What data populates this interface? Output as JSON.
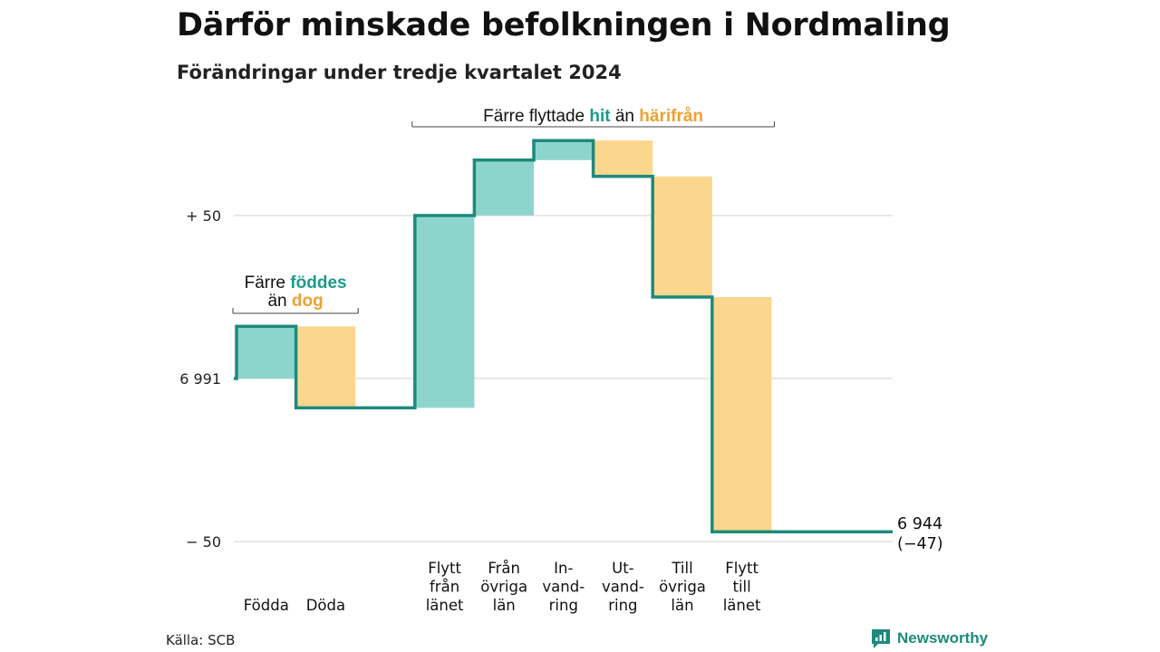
{
  "header": {
    "title": "Därför minskade befolkningen i Nordmaling",
    "subtitle": "Förändringar under tredje kvartalet 2024"
  },
  "colors": {
    "increase_fill": "#8dd5cc",
    "decrease_fill": "#fbd68d",
    "line": "#1d8a7c",
    "highlight_teal": "#1d9a8a",
    "highlight_orange": "#f0a030",
    "grid": "#e0e0e0",
    "logo": "#1d8a7c"
  },
  "chart_data": {
    "type": "waterfall",
    "start_value": 6991,
    "end_value": 6944,
    "end_label": "6 944",
    "end_change_label": "(−47)",
    "y_ticks": [
      {
        "value": 50,
        "label": "+ 50"
      },
      {
        "value": 0,
        "label": "6 991"
      },
      {
        "value": -50,
        "label": "− 50"
      }
    ],
    "ylim": [
      -52,
      72
    ],
    "steps": [
      {
        "label": [
          "Födda"
        ],
        "change": 16
      },
      {
        "label": [
          "Döda"
        ],
        "change": -25
      },
      {
        "label": [],
        "change": 0
      },
      {
        "label": [
          "Flytt",
          "från",
          "länet"
        ],
        "change": 59
      },
      {
        "label": [
          "Från",
          "övriga",
          "län"
        ],
        "change": 17
      },
      {
        "label": [
          "In-",
          "vand-",
          "ring"
        ],
        "change": 6
      },
      {
        "label": [
          "Ut-",
          "vand-",
          "ring"
        ],
        "change": -11
      },
      {
        "label": [
          "Till",
          "övriga",
          "län"
        ],
        "change": -37
      },
      {
        "label": [
          "Flytt",
          "till",
          "länet"
        ],
        "change": -72
      }
    ],
    "annotations": [
      {
        "parts": [
          {
            "text": "Färre ",
            "style": "plain"
          },
          {
            "text": "föddes",
            "style": "teal"
          }
        ],
        "parts2": [
          {
            "text": "än ",
            "style": "plain"
          },
          {
            "text": "dog",
            "style": "orange"
          }
        ],
        "from_step": 0,
        "to_step": 1
      },
      {
        "parts": [
          {
            "text": "Färre flyttade ",
            "style": "plain"
          },
          {
            "text": "hit",
            "style": "teal"
          },
          {
            "text": " än ",
            "style": "plain"
          },
          {
            "text": "härifrån",
            "style": "orange"
          }
        ],
        "from_step": 3,
        "to_step": 8
      }
    ]
  },
  "footer": {
    "source": "Källa: SCB",
    "brand": "Newsworthy"
  }
}
